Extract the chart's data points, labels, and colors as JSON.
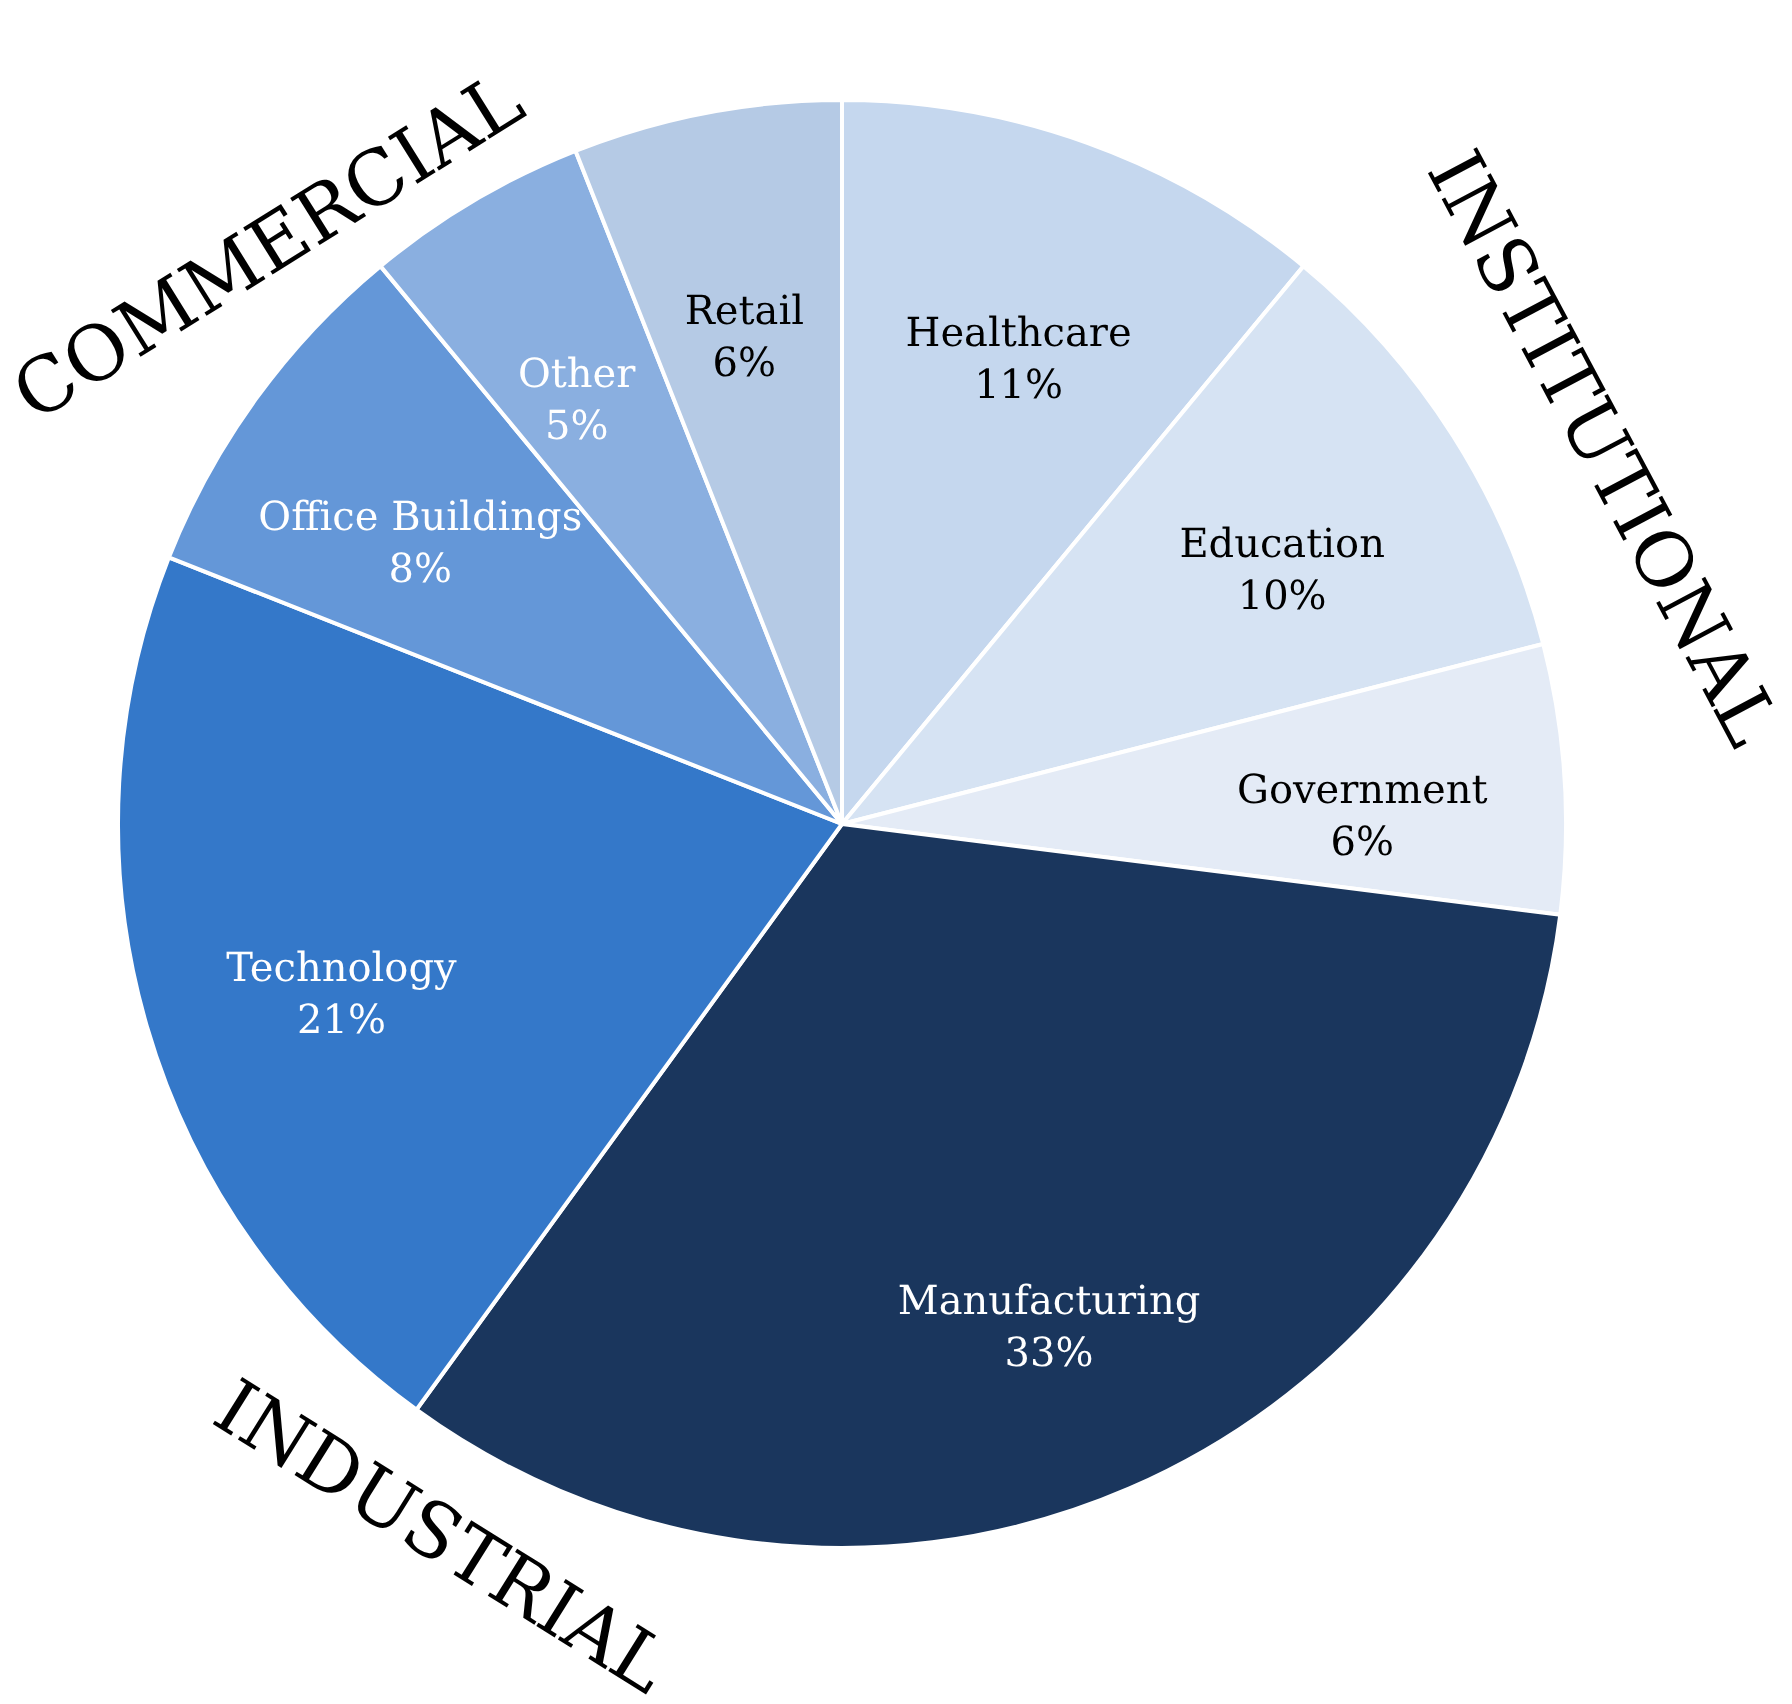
{
  "chart_data": {
    "type": "pie",
    "categories": [
      "Healthcare",
      "Education",
      "Government",
      "Manufacturing",
      "Technology",
      "Office Buildings",
      "Other",
      "Retail"
    ],
    "values": [
      11,
      10,
      6,
      33,
      21,
      8,
      5,
      6
    ],
    "value_labels": [
      "11%",
      "10%",
      "6%",
      "33%",
      "21%",
      "8%",
      "5%",
      "6%"
    ],
    "colors": [
      "#c5d7ee",
      "#d6e3f3",
      "#e4ebf6",
      "#1a365d",
      "#3478c9",
      "#6497d8",
      "#8aafe0",
      "#b5cae5"
    ],
    "annotations": [
      "COMMERCIAL",
      "INSTITUTIONAL",
      "INDUSTRIAL"
    ],
    "legend": false
  }
}
